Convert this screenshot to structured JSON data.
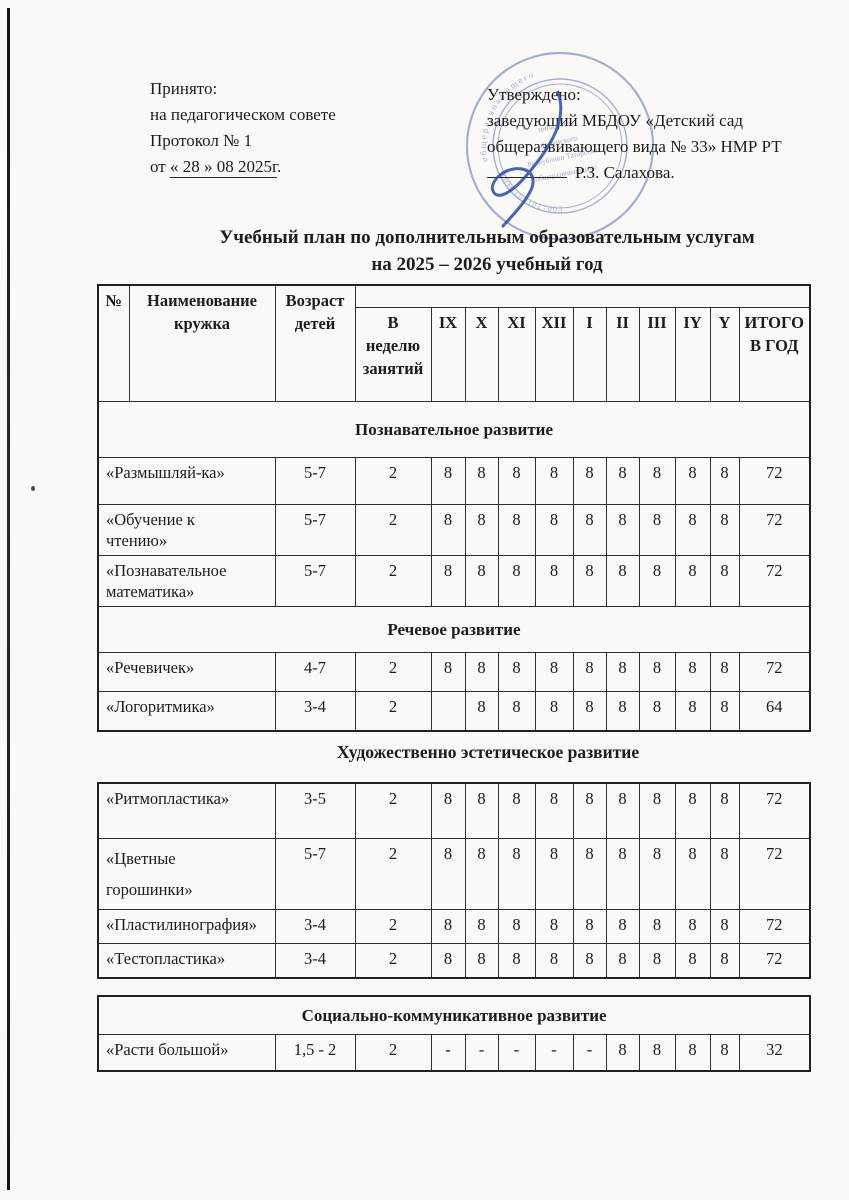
{
  "document": {
    "accepted": {
      "line1": "Принято:",
      "line2": "на педагогическом совете",
      "line3": "Протокол № 1",
      "date_prefix": "от ",
      "date": "« 28 »  08  2025г",
      "date_suffix": "."
    },
    "approved": {
      "line1": "Утверждено:",
      "line2": "заведующий МБДОУ «Детский сад",
      "line3": "общеразвивающего вида № 33» НМР РТ",
      "signatory": "Р.З. Салахова."
    },
    "stamp": {
      "color": "#4a68b8",
      "fragments": [
        "общеразвивающего",
        "ципальное",
        "Республики Татарстан",
        "некамского",
        "ИНН 1651027003"
      ]
    },
    "title": {
      "line1": "Учебный план по  дополнительным образовательным услугам",
      "line2": "на 2025 – 2026 учебный год"
    }
  },
  "table": {
    "columns": {
      "num": "№",
      "name": "Наименование\nкружка",
      "age": "Возраст\nдетей",
      "per_week": "В\nнеделю\nзанятий",
      "months": [
        "IX",
        "X",
        "XI",
        "XII",
        "I",
        "II",
        "III",
        "IY",
        "Y"
      ],
      "total": "ИТОГО\nВ ГОД"
    },
    "tables": [
      {
        "blocks": [
          {
            "section": "Познавательное развитие",
            "rows": [
              {
                "name": "«Размышляй-ка»",
                "age": "5-7",
                "per_week": "2",
                "months": [
                  "8",
                  "8",
                  "8",
                  "8",
                  "8",
                  "8",
                  "8",
                  "8",
                  "8"
                ],
                "total": "72"
              },
              {
                "name": "«Обучение к\nчтению»",
                "age": "5-7",
                "per_week": "2",
                "months": [
                  "8",
                  "8",
                  "8",
                  "8",
                  "8",
                  "8",
                  "8",
                  "8",
                  "8"
                ],
                "total": "72"
              },
              {
                "name": "«Познавательное\nматематика»",
                "age": "5-7",
                "per_week": "2",
                "months": [
                  "8",
                  "8",
                  "8",
                  "8",
                  "8",
                  "8",
                  "8",
                  "8",
                  "8"
                ],
                "total": "72"
              }
            ]
          },
          {
            "section": "Речевое развитие",
            "rows": [
              {
                "name": "«Речевичек»",
                "age": "4-7",
                "per_week": "2",
                "months": [
                  "8",
                  "8",
                  "8",
                  "8",
                  "8",
                  "8",
                  "8",
                  "8",
                  "8"
                ],
                "total": "72"
              },
              {
                "name": "«Логоритмика»",
                "age": "3-4",
                "per_week": "2",
                "months": [
                  "",
                  "8",
                  "8",
                  "8",
                  "8",
                  "8",
                  "8",
                  "8",
                  "8"
                ],
                "total": "64"
              }
            ]
          }
        ]
      },
      {
        "heading_above": "Художественно эстетическое развитие",
        "blocks": [
          {
            "rows": [
              {
                "name": "«Ритмопластика»",
                "age": "3-5",
                "per_week": "2",
                "months": [
                  "8",
                  "8",
                  "8",
                  "8",
                  "8",
                  "8",
                  "8",
                  "8",
                  "8"
                ],
                "total": "72"
              },
              {
                "name": "«Цветные\nгорошинки»",
                "age": "5-7",
                "per_week": "2",
                "months": [
                  "8",
                  "8",
                  "8",
                  "8",
                  "8",
                  "8",
                  "8",
                  "8",
                  "8"
                ],
                "total": "72"
              },
              {
                "name": "«Пластилинография»",
                "age": "3-4",
                "per_week": "2",
                "months": [
                  "8",
                  "8",
                  "8",
                  "8",
                  "8",
                  "8",
                  "8",
                  "8",
                  "8"
                ],
                "total": "72"
              },
              {
                "name": "«Тестопластика»",
                "age": "3-4",
                "per_week": "2",
                "months": [
                  "8",
                  "8",
                  "8",
                  "8",
                  "8",
                  "8",
                  "8",
                  "8",
                  "8"
                ],
                "total": "72"
              }
            ]
          }
        ]
      },
      {
        "blocks": [
          {
            "section": "Социально-коммуникативное развитие",
            "rows": [
              {
                "name": "«Расти большой»",
                "age": "1,5 - 2",
                "per_week": "2",
                "months": [
                  "-",
                  "-",
                  "-",
                  "-",
                  "-",
                  "8",
                  "8",
                  "8",
                  "8"
                ],
                "total": "32"
              }
            ]
          }
        ]
      }
    ]
  }
}
